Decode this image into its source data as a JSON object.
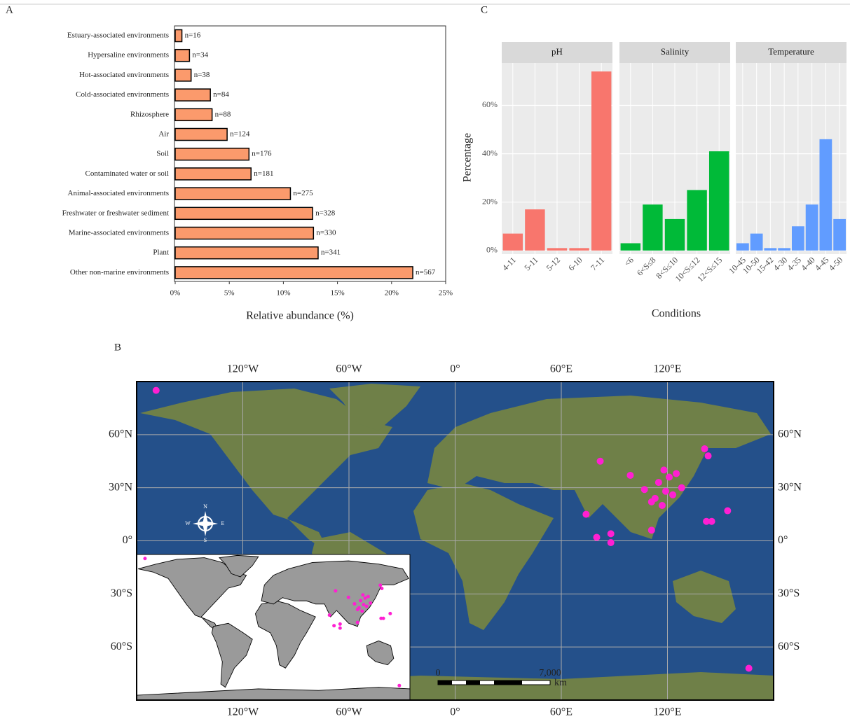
{
  "chart_data": [
    {
      "panel": "A",
      "type": "bar",
      "orientation": "horizontal",
      "categories": [
        "Estuary-associated environments",
        "Hypersaline environments",
        "Hot-associated environments",
        "Cold-associated environments",
        "Rhizosphere",
        "Air",
        "Soil",
        "Contaminated water or soil",
        "Animal-associated environments",
        "Freshwater or freshwater sediment",
        "Marine-associated environments",
        "Plant",
        "Other non-marine environments"
      ],
      "values": [
        0.62,
        1.32,
        1.47,
        3.25,
        3.41,
        4.8,
        6.82,
        7.01,
        10.65,
        12.7,
        12.78,
        13.21,
        21.96
      ],
      "bar_labels": [
        "n=16",
        "n=34",
        "n=38",
        "n=84",
        "n=88",
        "n=124",
        "n=176",
        "n=181",
        "n=275",
        "n=328",
        "n=330",
        "n=341",
        "n=567"
      ],
      "color": "#fb9a6c",
      "xlim": [
        0,
        25
      ],
      "xticks": [
        {
          "value": 0,
          "label": "0%"
        },
        {
          "value": 5,
          "label": "5%"
        },
        {
          "value": 10,
          "label": "10%"
        },
        {
          "value": 15,
          "label": "15%"
        },
        {
          "value": 20,
          "label": "20%"
        },
        {
          "value": 25,
          "label": "25%"
        }
      ],
      "xlabel": "Relative abundance (%)"
    },
    {
      "panel": "C",
      "type": "facet_bar",
      "facets": [
        {
          "name": "pH",
          "color": "#f8766d",
          "categories": [
            "4-11",
            "5-11",
            "5-12",
            "6-10",
            "7-11"
          ],
          "values": [
            7,
            17,
            1,
            1,
            74
          ]
        },
        {
          "name": "Salinity",
          "color": "#00ba38",
          "categories": [
            "<6",
            "6<S≤8",
            "8<S≤10",
            "10<S≤12",
            "12<S≤15"
          ],
          "values": [
            3,
            19,
            13,
            25,
            41
          ]
        },
        {
          "name": "Temperature",
          "color": "#619cff",
          "categories": [
            "10-45",
            "10-50",
            "15-42",
            "4-30",
            "4-35",
            "4-40",
            "4-45",
            "4-50"
          ],
          "values": [
            3,
            7,
            1,
            1,
            10,
            19,
            46,
            13
          ]
        }
      ],
      "ylim": [
        -1.5,
        77.5
      ],
      "yticks": [
        {
          "value": 0,
          "label": "0%"
        },
        {
          "value": 20,
          "label": "20%"
        },
        {
          "value": 40,
          "label": "40%"
        },
        {
          "value": 60,
          "label": "60%"
        }
      ],
      "grid": true,
      "ylabel": "Percentage",
      "xlabel": "Conditions"
    },
    {
      "panel": "B",
      "type": "map",
      "xlim": [
        -180,
        180
      ],
      "ylim": [
        -90,
        90
      ],
      "xticks": [
        {
          "value": -120,
          "label": "120°W"
        },
        {
          "value": -60,
          "label": "60°W"
        },
        {
          "value": 0,
          "label": "0°"
        },
        {
          "value": 60,
          "label": "60°E"
        },
        {
          "value": 120,
          "label": "120°E"
        }
      ],
      "yticks": [
        {
          "value": 60,
          "label": "60°N"
        },
        {
          "value": 30,
          "label": "30°N"
        },
        {
          "value": 0,
          "label": "0°"
        },
        {
          "value": -30,
          "label": "30°S"
        },
        {
          "value": -60,
          "label": "60°S"
        }
      ],
      "grid": true,
      "color": "#ff1fd2",
      "points": {
        "lon": [
          -169,
          82,
          99,
          121,
          115,
          125,
          119,
          111,
          117,
          123,
          128,
          107,
          141,
          143,
          142,
          145,
          154,
          74,
          80,
          88,
          88,
          111,
          166,
          118,
          113
        ],
        "lat": [
          85,
          45,
          37,
          36,
          33,
          38,
          28,
          22,
          20,
          26,
          30,
          29,
          52,
          48,
          11,
          11,
          17,
          15,
          2,
          4,
          -1,
          6,
          -72,
          40,
          24
        ]
      },
      "compass": [
        "N",
        "E",
        "S",
        "W"
      ],
      "scale_bar": {
        "labels": [
          "0",
          "7,000"
        ],
        "unit": "km"
      }
    }
  ]
}
